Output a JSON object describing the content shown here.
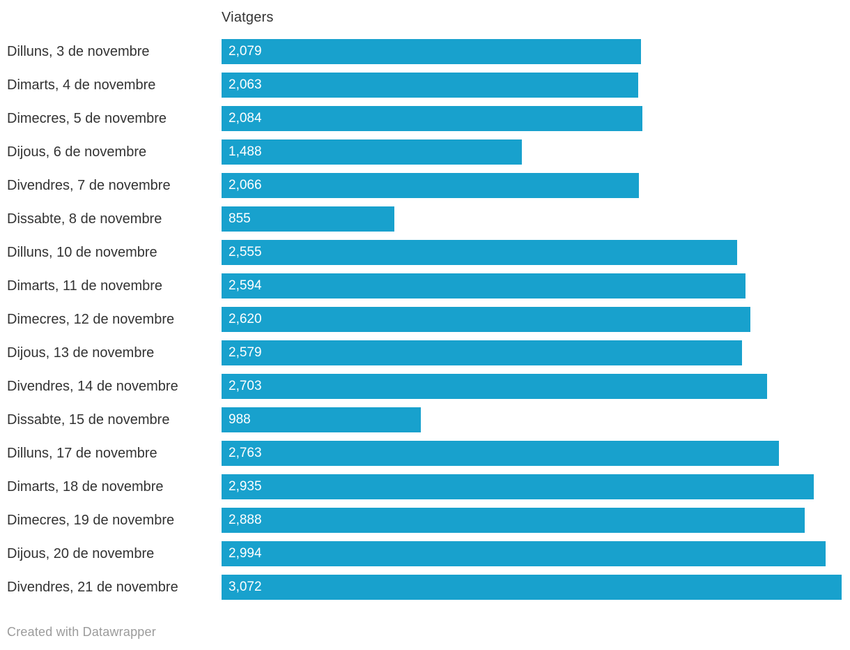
{
  "chart_data": {
    "type": "bar",
    "orientation": "horizontal",
    "column_header": "Viatgers",
    "categories": [
      "Dilluns, 3 de novembre",
      "Dimarts, 4 de novembre",
      "Dimecres, 5 de novembre",
      "Dijous, 6 de novembre",
      "Divendres, 7 de novembre",
      "Dissabte, 8 de novembre",
      "Dilluns, 10 de novembre",
      "Dimarts, 11 de novembre",
      "Dimecres, 12 de novembre",
      "Dijous, 13 de novembre",
      "Divendres, 14 de novembre",
      "Dissabte, 15 de novembre",
      "Dilluns, 17 de novembre",
      "Dimarts, 18 de novembre",
      "Dimecres, 19 de novembre",
      "Dijous, 20 de novembre",
      "Divendres, 21 de novembre"
    ],
    "values": [
      2079,
      2063,
      2084,
      1488,
      2066,
      855,
      2555,
      2594,
      2620,
      2579,
      2703,
      988,
      2763,
      2935,
      2888,
      2994,
      3072
    ],
    "value_labels": [
      "2,079",
      "2,063",
      "2,084",
      "1,488",
      "2,066",
      "855",
      "2,555",
      "2,594",
      "2,620",
      "2,579",
      "2,703",
      "988",
      "2,763",
      "2,935",
      "2,888",
      "2,994",
      "3,072"
    ],
    "xlim": [
      0,
      3072
    ],
    "grid": false,
    "legend": false,
    "colors": {
      "bar": "#18a1cd",
      "bar_value_text": "#ffffff",
      "label_text": "#333333",
      "header_text": "#333333",
      "credit_text": "#9b9b9b"
    }
  },
  "footer": {
    "credit": "Created with Datawrapper"
  }
}
